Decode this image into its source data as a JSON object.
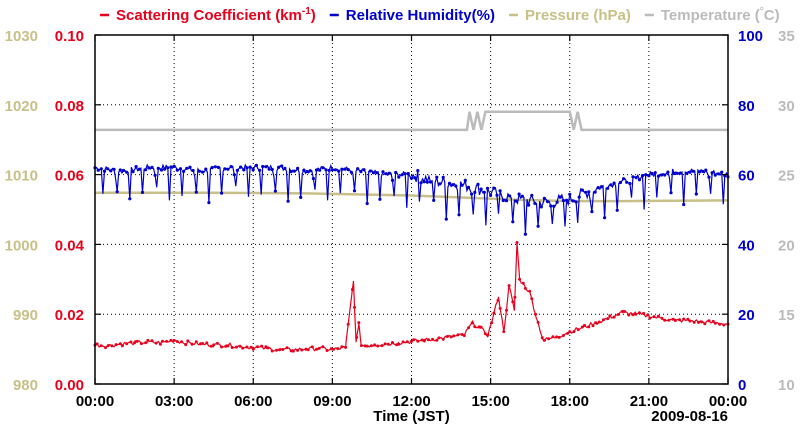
{
  "chart_data": {
    "type": "line",
    "legend": [
      {
        "key": "scattering",
        "name": "Scattering Coefficient (km",
        "sup": "-1",
        "suffix": ")",
        "color": "#e8001c"
      },
      {
        "key": "rh",
        "name": "Relative Humidity(%)",
        "sup": "",
        "suffix": "",
        "color": "#0000cc"
      },
      {
        "key": "pressure",
        "name": "Pressure (hPa)",
        "sup": "",
        "suffix": "",
        "color": "#c8c088"
      },
      {
        "key": "temperature",
        "name": "Temperature (",
        "sup": "°",
        "suffix": "C)",
        "color": "#bbbbbb"
      }
    ],
    "xlabel": "Time (JST)",
    "date_label": "2009-08-16",
    "x_range_hours": [
      0,
      24
    ],
    "x_ticks": [
      "00:00",
      "03:00",
      "06:00",
      "09:00",
      "12:00",
      "15:00",
      "18:00",
      "21:00",
      "00:00"
    ],
    "axes": {
      "pressure": {
        "range": [
          980,
          1030
        ],
        "ticks": [
          "980",
          "990",
          "1000",
          "1010",
          "1020",
          "1030"
        ],
        "color": "#c8c088"
      },
      "scattering": {
        "range": [
          0,
          0.1
        ],
        "ticks": [
          "0.00",
          "0.02",
          "0.04",
          "0.06",
          "0.08",
          "0.10"
        ],
        "color": "#e8001c"
      },
      "rh": {
        "range": [
          0,
          100
        ],
        "ticks": [
          "0",
          "20",
          "40",
          "60",
          "80",
          "100"
        ],
        "color": "#0000cc"
      },
      "temperature": {
        "range": [
          10,
          35
        ],
        "ticks": [
          "10",
          "15",
          "20",
          "25",
          "30",
          "35"
        ],
        "color": "#bbbbbb"
      }
    },
    "series": [
      {
        "name": "Scattering Coefficient",
        "axis": "scattering",
        "color": "#e8001c",
        "x": [
          0,
          0.5,
          1,
          1.5,
          2,
          2.5,
          3,
          3.5,
          4,
          4.5,
          5,
          5.5,
          6,
          6.5,
          7,
          7.5,
          8,
          8.5,
          9,
          9.5,
          9.8,
          9.9,
          10.0,
          10.1,
          10.3,
          10.6,
          11,
          11.5,
          12,
          12.5,
          13,
          13.5,
          14,
          14.3,
          14.6,
          14.9,
          15.1,
          15.3,
          15.5,
          15.7,
          15.9,
          16.0,
          16.1,
          16.3,
          16.5,
          16.7,
          17,
          17.5,
          18,
          18.5,
          19,
          19.5,
          20,
          20.5,
          21,
          21.5,
          22,
          22.5,
          23,
          23.5,
          24
        ],
        "y": [
          0.0112,
          0.011,
          0.0115,
          0.0118,
          0.012,
          0.0118,
          0.0125,
          0.0118,
          0.0115,
          0.0112,
          0.0112,
          0.0108,
          0.0105,
          0.0102,
          0.0098,
          0.0098,
          0.01,
          0.0102,
          0.0098,
          0.0105,
          0.0295,
          0.012,
          0.017,
          0.011,
          0.011,
          0.0112,
          0.0115,
          0.0118,
          0.0122,
          0.0125,
          0.013,
          0.0135,
          0.014,
          0.0175,
          0.016,
          0.014,
          0.0195,
          0.025,
          0.015,
          0.0282,
          0.021,
          0.0405,
          0.03,
          0.028,
          0.026,
          0.02,
          0.0125,
          0.0135,
          0.015,
          0.0162,
          0.0175,
          0.019,
          0.0205,
          0.02,
          0.0195,
          0.0188,
          0.0182,
          0.0182,
          0.0178,
          0.0175,
          0.0172
        ]
      },
      {
        "name": "Relative Humidity",
        "axis": "rh",
        "color": "#0000cc",
        "x": [
          0,
          1,
          2,
          3,
          4,
          5,
          6,
          7,
          8,
          9,
          10,
          11,
          12,
          13,
          14,
          15,
          16,
          17,
          18,
          19,
          20,
          21,
          22,
          23,
          24
        ],
        "y": [
          62,
          61,
          62,
          62,
          61,
          62,
          62,
          62,
          61,
          62,
          61,
          60,
          60,
          58,
          57,
          55,
          53,
          52,
          53,
          56,
          58,
          60,
          61,
          61,
          60
        ],
        "dip_depth": 9,
        "cycle_hours": 0.5,
        "noise_start_hour": 12,
        "noise_end_hour": 19
      },
      {
        "name": "Pressure",
        "axis": "pressure",
        "color": "#c8c088",
        "x": [
          0,
          4,
          8,
          12,
          16,
          18,
          20,
          24
        ],
        "y": [
          1007.4,
          1007.4,
          1007.3,
          1007.0,
          1006.4,
          1006.2,
          1006.2,
          1006.3
        ]
      },
      {
        "name": "Temperature",
        "axis": "temperature",
        "color": "#bbbbbb",
        "x": [
          0,
          14.1,
          14.2,
          14.35,
          14.5,
          14.65,
          14.8,
          18.0,
          18.15,
          18.3,
          18.45,
          18.6,
          18.75,
          24
        ],
        "y": [
          28.2,
          28.2,
          29.5,
          28.2,
          29.5,
          28.2,
          29.5,
          29.5,
          28.2,
          29.5,
          28.2,
          28.2,
          28.2,
          28.2
        ]
      }
    ]
  }
}
